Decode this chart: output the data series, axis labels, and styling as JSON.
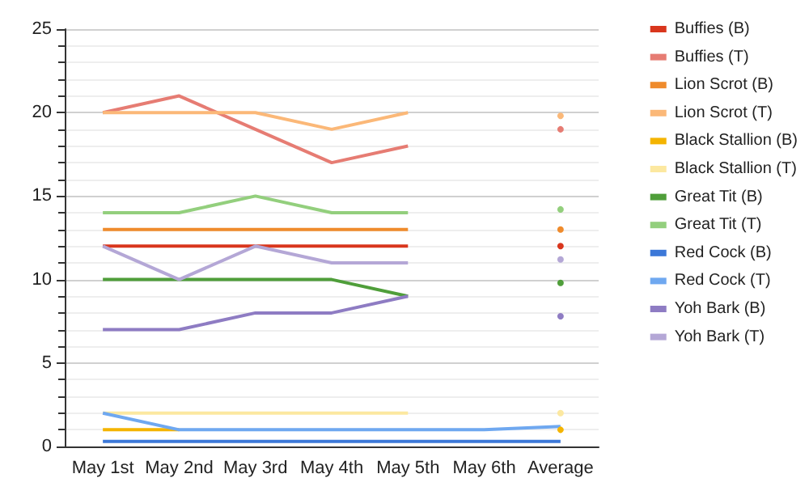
{
  "chart_data": {
    "type": "line",
    "categories": [
      "May 1st",
      "May 2nd",
      "May 3rd",
      "May 4th",
      "May 5th",
      "May 6th",
      "Average"
    ],
    "ylim": [
      0,
      25
    ],
    "yticks": [
      0,
      5,
      10,
      15,
      20,
      25
    ],
    "grid": "y",
    "legend": "right",
    "series": [
      {
        "name": "Buffies (B)",
        "color": "#d9361d",
        "values": [
          12,
          12,
          12,
          12,
          12,
          null,
          12
        ]
      },
      {
        "name": "Buffies (T)",
        "color": "#e67c73",
        "values": [
          20,
          21,
          19,
          17,
          18,
          null,
          19
        ]
      },
      {
        "name": "Lion Scrot (B)",
        "color": "#ef8b2c",
        "values": [
          13,
          13,
          13,
          13,
          13,
          null,
          13
        ]
      },
      {
        "name": "Lion Scrot (T)",
        "color": "#fbb878",
        "values": [
          20,
          20,
          20,
          19,
          20,
          null,
          19.8
        ]
      },
      {
        "name": "Black Stallion (B)",
        "color": "#f4b400",
        "values": [
          1,
          1,
          null,
          null,
          null,
          null,
          1
        ]
      },
      {
        "name": "Black Stallion (T)",
        "color": "#fce8a0",
        "values": [
          2,
          2,
          2,
          2,
          2,
          null,
          2
        ]
      },
      {
        "name": "Great Tit (B)",
        "color": "#4f9e3a",
        "values": [
          10,
          10,
          10,
          10,
          9,
          null,
          9.8
        ]
      },
      {
        "name": "Great Tit (T)",
        "color": "#93cf7d",
        "values": [
          14,
          14,
          15,
          14,
          14,
          null,
          14.2
        ]
      },
      {
        "name": "Red Cock (B)",
        "color": "#3c78d8",
        "values": [
          0.3,
          0.3,
          0.3,
          0.3,
          0.3,
          0.3,
          0.3
        ]
      },
      {
        "name": "Red Cock (T)",
        "color": "#6fa8f0",
        "values": [
          2,
          1,
          1,
          1,
          1,
          1,
          1.2
        ]
      },
      {
        "name": "Yoh Bark (B)",
        "color": "#8e7cc3",
        "values": [
          7,
          7,
          8,
          8,
          9,
          null,
          7.8
        ]
      },
      {
        "name": "Yoh Bark (T)",
        "color": "#b4a7d6",
        "values": [
          12,
          10,
          12,
          11,
          11,
          null,
          11.2
        ]
      }
    ]
  }
}
